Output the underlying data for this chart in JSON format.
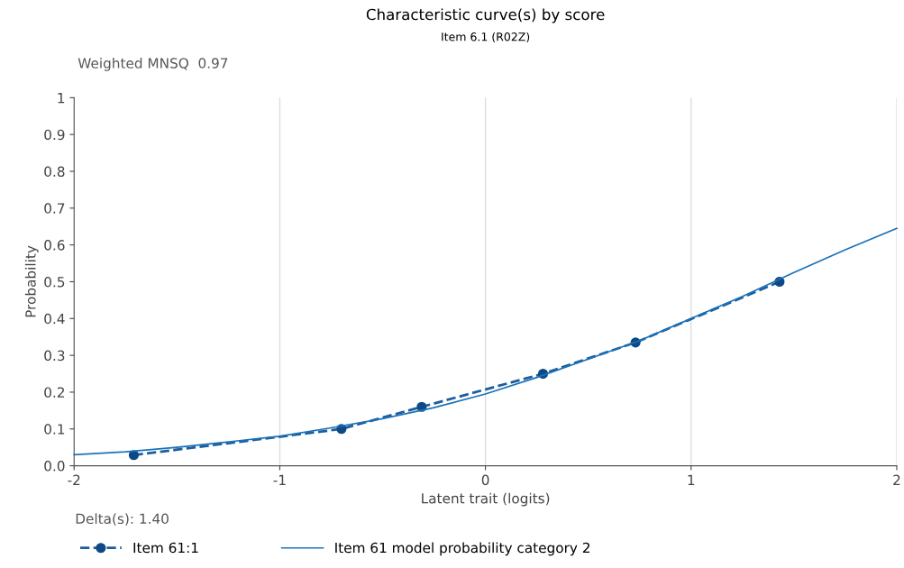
{
  "chart_data": {
    "type": "line",
    "title": "Characteristic curve(s) by score",
    "subtitle": "Item 6.1 (R02Z)",
    "xlabel": "Latent trait (logits)",
    "ylabel": "Probability",
    "annotations": [
      "Weighted MNSQ  0.97",
      "Delta(s): 1.40"
    ],
    "xlim": [
      -2,
      2
    ],
    "xticks": [
      -2,
      -1,
      0,
      1,
      2
    ],
    "ylim": [
      0,
      1
    ],
    "yticks": [
      {
        "value": 0,
        "label": "0.0"
      },
      0.1,
      0.2,
      0.3,
      0.4,
      0.5,
      0.6,
      0.7,
      0.8,
      0.9,
      1
    ],
    "grid": "x",
    "legend": "bottom left",
    "series": [
      {
        "name": "Item 61:1",
        "color": "#1b5e9e",
        "marker": "circle",
        "line_style": "dashed",
        "x": [
          -1.71,
          -0.7,
          -0.31,
          0.28,
          0.73,
          1.43
        ],
        "values": [
          0.029,
          0.1,
          0.16,
          0.25,
          0.335,
          0.5
        ]
      },
      {
        "name": "Item 61 model probability category 2",
        "color": "#1a72b8",
        "marker": "none",
        "line_style": "solid",
        "x": [
          -2,
          -1.75,
          -1.5,
          -1.25,
          -1,
          -0.75,
          -0.5,
          -0.25,
          0,
          0.25,
          0.5,
          0.75,
          1,
          1.25,
          1.5,
          1.75,
          2
        ],
        "values": [
          0.03,
          0.038,
          0.05,
          0.065,
          0.08,
          0.103,
          0.128,
          0.158,
          0.195,
          0.24,
          0.29,
          0.34,
          0.4,
          0.46,
          0.525,
          0.587,
          0.645
        ]
      }
    ]
  }
}
